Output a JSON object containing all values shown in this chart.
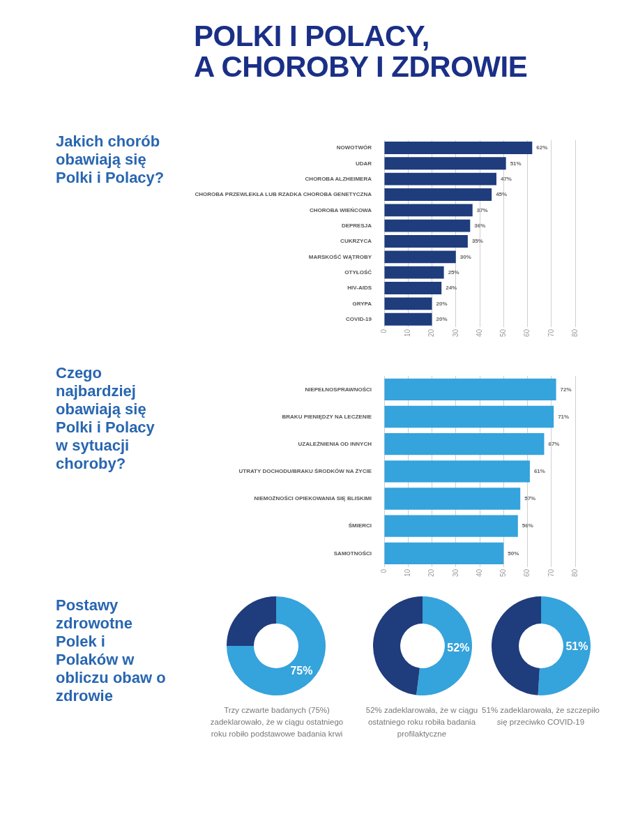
{
  "chart_data": [
    {
      "type": "bar",
      "orientation": "horizontal",
      "title": "POLKI I POLACY,\nA CHOROBY I ZDROWIE",
      "subtitle": "Jakich chorób obawiają się Polki i Polacy?",
      "categories": [
        "NOWOTWÓR",
        "UDAR",
        "CHOROBA ALZHEIMERA",
        "CHOROBA PRZEWLEKŁA LUB RZADKA CHOROBA GENETYCZNA",
        "CHOROBA WIEŃCOWA",
        "DEPRESJA",
        "CUKRZYCA",
        "MARSKOŚĆ WĄTROBY",
        "OTYŁOŚĆ",
        "HIV-AIDS",
        "GRYPA",
        "COVID-19"
      ],
      "values": [
        62,
        51,
        47,
        45,
        37,
        36,
        35,
        30,
        25,
        24,
        20,
        20
      ],
      "value_labels": [
        "62%",
        "51%",
        "47%",
        "45%",
        "37%",
        "36%",
        "35%",
        "30%",
        "25%",
        "24%",
        "20%",
        "20%"
      ],
      "color": "#1f3c7c",
      "xlim": [
        0,
        80
      ],
      "xticks": [
        0,
        10,
        20,
        30,
        40,
        50,
        60,
        70,
        80
      ],
      "grid": "x"
    },
    {
      "type": "bar",
      "orientation": "horizontal",
      "title": "Czego najbardziej obawiają się Polki i Polacy w sytuacji choroby?",
      "categories": [
        "NIEPEŁNOSPRAWNOŚCI",
        "BRAKU PIENIĘDZY NA LECZENIE",
        "UZALEŻNIENIA OD INNYCH",
        "UTRATY DOCHODU/BRAKU ŚRODKÓW NA ŻYCIE",
        "NIEMOŻNOŚCI OPIEKOWANIA SIĘ BLISKIMI",
        "ŚMIERCI",
        "SAMOTNOŚCI"
      ],
      "values": [
        72,
        71,
        67,
        61,
        57,
        56,
        50
      ],
      "value_labels": [
        "72%",
        "71%",
        "67%",
        "61%",
        "57%",
        "56%",
        "50%"
      ],
      "color": "#35a3dc",
      "xlim": [
        0,
        80
      ],
      "xticks": [
        0,
        10,
        20,
        30,
        40,
        50,
        60,
        70,
        80
      ],
      "grid": "x"
    },
    {
      "type": "donut",
      "title": "Postawy zdrowotne Polek i Polaków w obliczu obaw o zdrowie",
      "categories": [
        null,
        null
      ],
      "values": [
        75,
        25
      ],
      "colors": [
        "#35a3dc",
        "#1f3c7c"
      ],
      "value_labels": [
        "75%",
        null
      ],
      "annotations": [
        "Trzy czwarte badanych (75%) zadeklarowało, że w ciągu ostatniego roku robiło podstawowe badania krwi"
      ]
    },
    {
      "type": "donut",
      "categories": [
        null,
        null
      ],
      "values": [
        52,
        48
      ],
      "colors": [
        "#35a3dc",
        "#1f3c7c"
      ],
      "value_labels": [
        "52%",
        null
      ],
      "annotations": [
        "52% zadeklarowała, że w ciągu ostatniego roku robiła badania profilaktyczne"
      ]
    },
    {
      "type": "donut",
      "categories": [
        null,
        null
      ],
      "values": [
        51,
        49
      ],
      "colors": [
        "#35a3dc",
        "#1f3c7c"
      ],
      "value_labels": [
        "51%",
        null
      ],
      "annotations": [
        "51% zadeklarowała, że szczepiło się przeciwko COVID-19"
      ]
    }
  ]
}
